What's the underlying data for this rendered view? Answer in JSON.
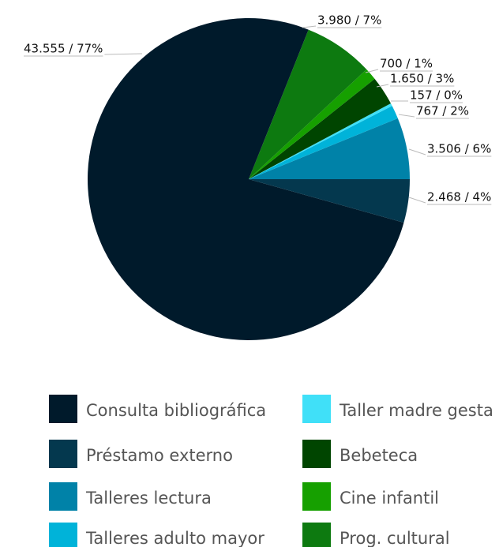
{
  "chart_data": {
    "type": "pie",
    "categories": [
      "Consulta bibliográfica",
      "Préstamo externo",
      "Talleres lectura",
      "Talleres adulto mayor",
      "Taller madre gesta",
      "Bebeteca",
      "Cine infantil",
      "Prog. cultural"
    ],
    "values": [
      43555,
      2468,
      3506,
      767,
      157,
      1650,
      700,
      3980
    ],
    "value_labels": [
      "43.555 / 77%",
      "2.468 / 4%",
      "3.506 / 6%",
      "767 / 2%",
      "157 / 0%",
      "1.650 / 3%",
      "700 / 1%",
      "3.980 / 7%"
    ],
    "colors": [
      "#001a2b",
      "#04384e",
      "#0082a8",
      "#00b3d9",
      "#40e0f8",
      "#004500",
      "#16a000",
      "#0d7a10"
    ]
  }
}
